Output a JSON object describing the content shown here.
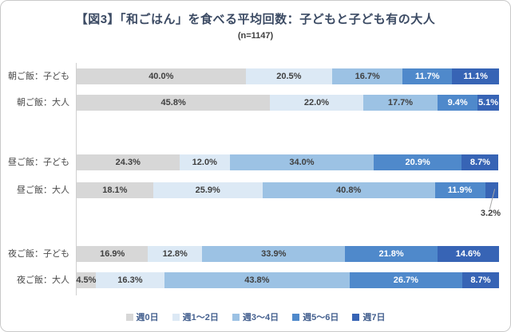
{
  "title": "【図3】「和ごはん」を食べる平均回数：子どもと子ども有の大人",
  "subtitle": "(n=1147)",
  "chart_data": {
    "type": "bar",
    "orientation": "horizontal",
    "stacked": true,
    "unit": "%",
    "xlim": [
      0,
      100
    ],
    "grid": false,
    "legend_position": "bottom",
    "categories": [
      "朝ご飯：子ども",
      "朝ご飯：大人",
      "昼ご飯：子ども",
      "昼ご飯：大人",
      "夜ご飯：子ども",
      "夜ご飯：大人"
    ],
    "series": [
      {
        "name": "週0日",
        "color": "#d7d7d7",
        "label_color": "#404040",
        "values": [
          40.0,
          45.8,
          24.3,
          18.1,
          16.9,
          4.5
        ]
      },
      {
        "name": "週1～2日",
        "color": "#dce9f5",
        "label_color": "#404040",
        "values": [
          20.5,
          22.0,
          12.0,
          25.9,
          12.8,
          16.3
        ]
      },
      {
        "name": "週3～4日",
        "color": "#9cc2e4",
        "label_color": "#404040",
        "values": [
          16.7,
          17.7,
          34.0,
          40.8,
          33.9,
          43.8
        ]
      },
      {
        "name": "週5～6日",
        "color": "#4f89cb",
        "label_color": "#ffffff",
        "values": [
          11.7,
          9.4,
          20.9,
          11.9,
          21.8,
          26.7
        ]
      },
      {
        "name": "週7日",
        "color": "#3764b5",
        "label_color": "#ffffff",
        "values": [
          11.1,
          5.1,
          8.7,
          3.2,
          14.6,
          8.7
        ]
      }
    ],
    "annotation": {
      "text": "3.2%",
      "row_index": 3,
      "series_index": 4,
      "placement": "below bar with leader line"
    }
  }
}
